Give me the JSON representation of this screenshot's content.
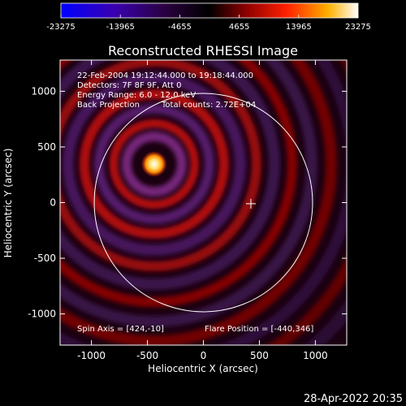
{
  "colorbar": {
    "ticks": [
      "-23275",
      "-13965",
      "-4655",
      "4655",
      "13965",
      "23275"
    ],
    "tick_values": [
      -23275,
      -13965,
      -4655,
      4655,
      13965,
      23275
    ],
    "range": [
      -23275,
      23275
    ]
  },
  "chart_data": {
    "type": "heatmap",
    "title": "Reconstructed RHESSI Image",
    "xlabel": "Heliocentric X (arcsec)",
    "ylabel": "Heliocentric Y (arcsec)",
    "xlim": [
      -1280,
      1280
    ],
    "ylim": [
      -1280,
      1280
    ],
    "xticks": [
      -1000,
      -500,
      0,
      500,
      1000
    ],
    "yticks": [
      -1000,
      -500,
      0,
      500,
      1000
    ],
    "xtick_labels": [
      "-1000",
      "-500",
      "0",
      "500",
      "1000"
    ],
    "ytick_labels": [
      "-1000",
      "-500",
      "0",
      "500",
      "1000"
    ],
    "solar_limb_radius": 975,
    "disk_center_marker": [
      424,
      -10
    ],
    "peak_source": {
      "x": -440,
      "y": 346,
      "value": 23275
    },
    "annotations": {
      "line1": "22-Feb-2004 19:12:44.000 to 19:18:44.000",
      "line2": "Detectors: 7F 8F 9F, Att 0",
      "line3": "Energy Range: 6.0 - 12.0 keV",
      "line4a": "Back Projection",
      "line4b": "Total counts: 2.72E+04",
      "spin_axis": "Spin Axis = [424,-10]",
      "flare_position": "Flare Position = [-440,346]"
    },
    "grid": false,
    "colormap": "blue-purple-red-yellow-white"
  },
  "footer": {
    "timestamp": "28-Apr-2022 20:35"
  },
  "colors": {
    "background": "#000000",
    "foreground": "#ffffff",
    "cmap_stops": [
      "#0000ff",
      "#3a0078",
      "#1a0020",
      "#000000",
      "#8a0000",
      "#ff2000",
      "#ffb000",
      "#ffffff"
    ]
  }
}
